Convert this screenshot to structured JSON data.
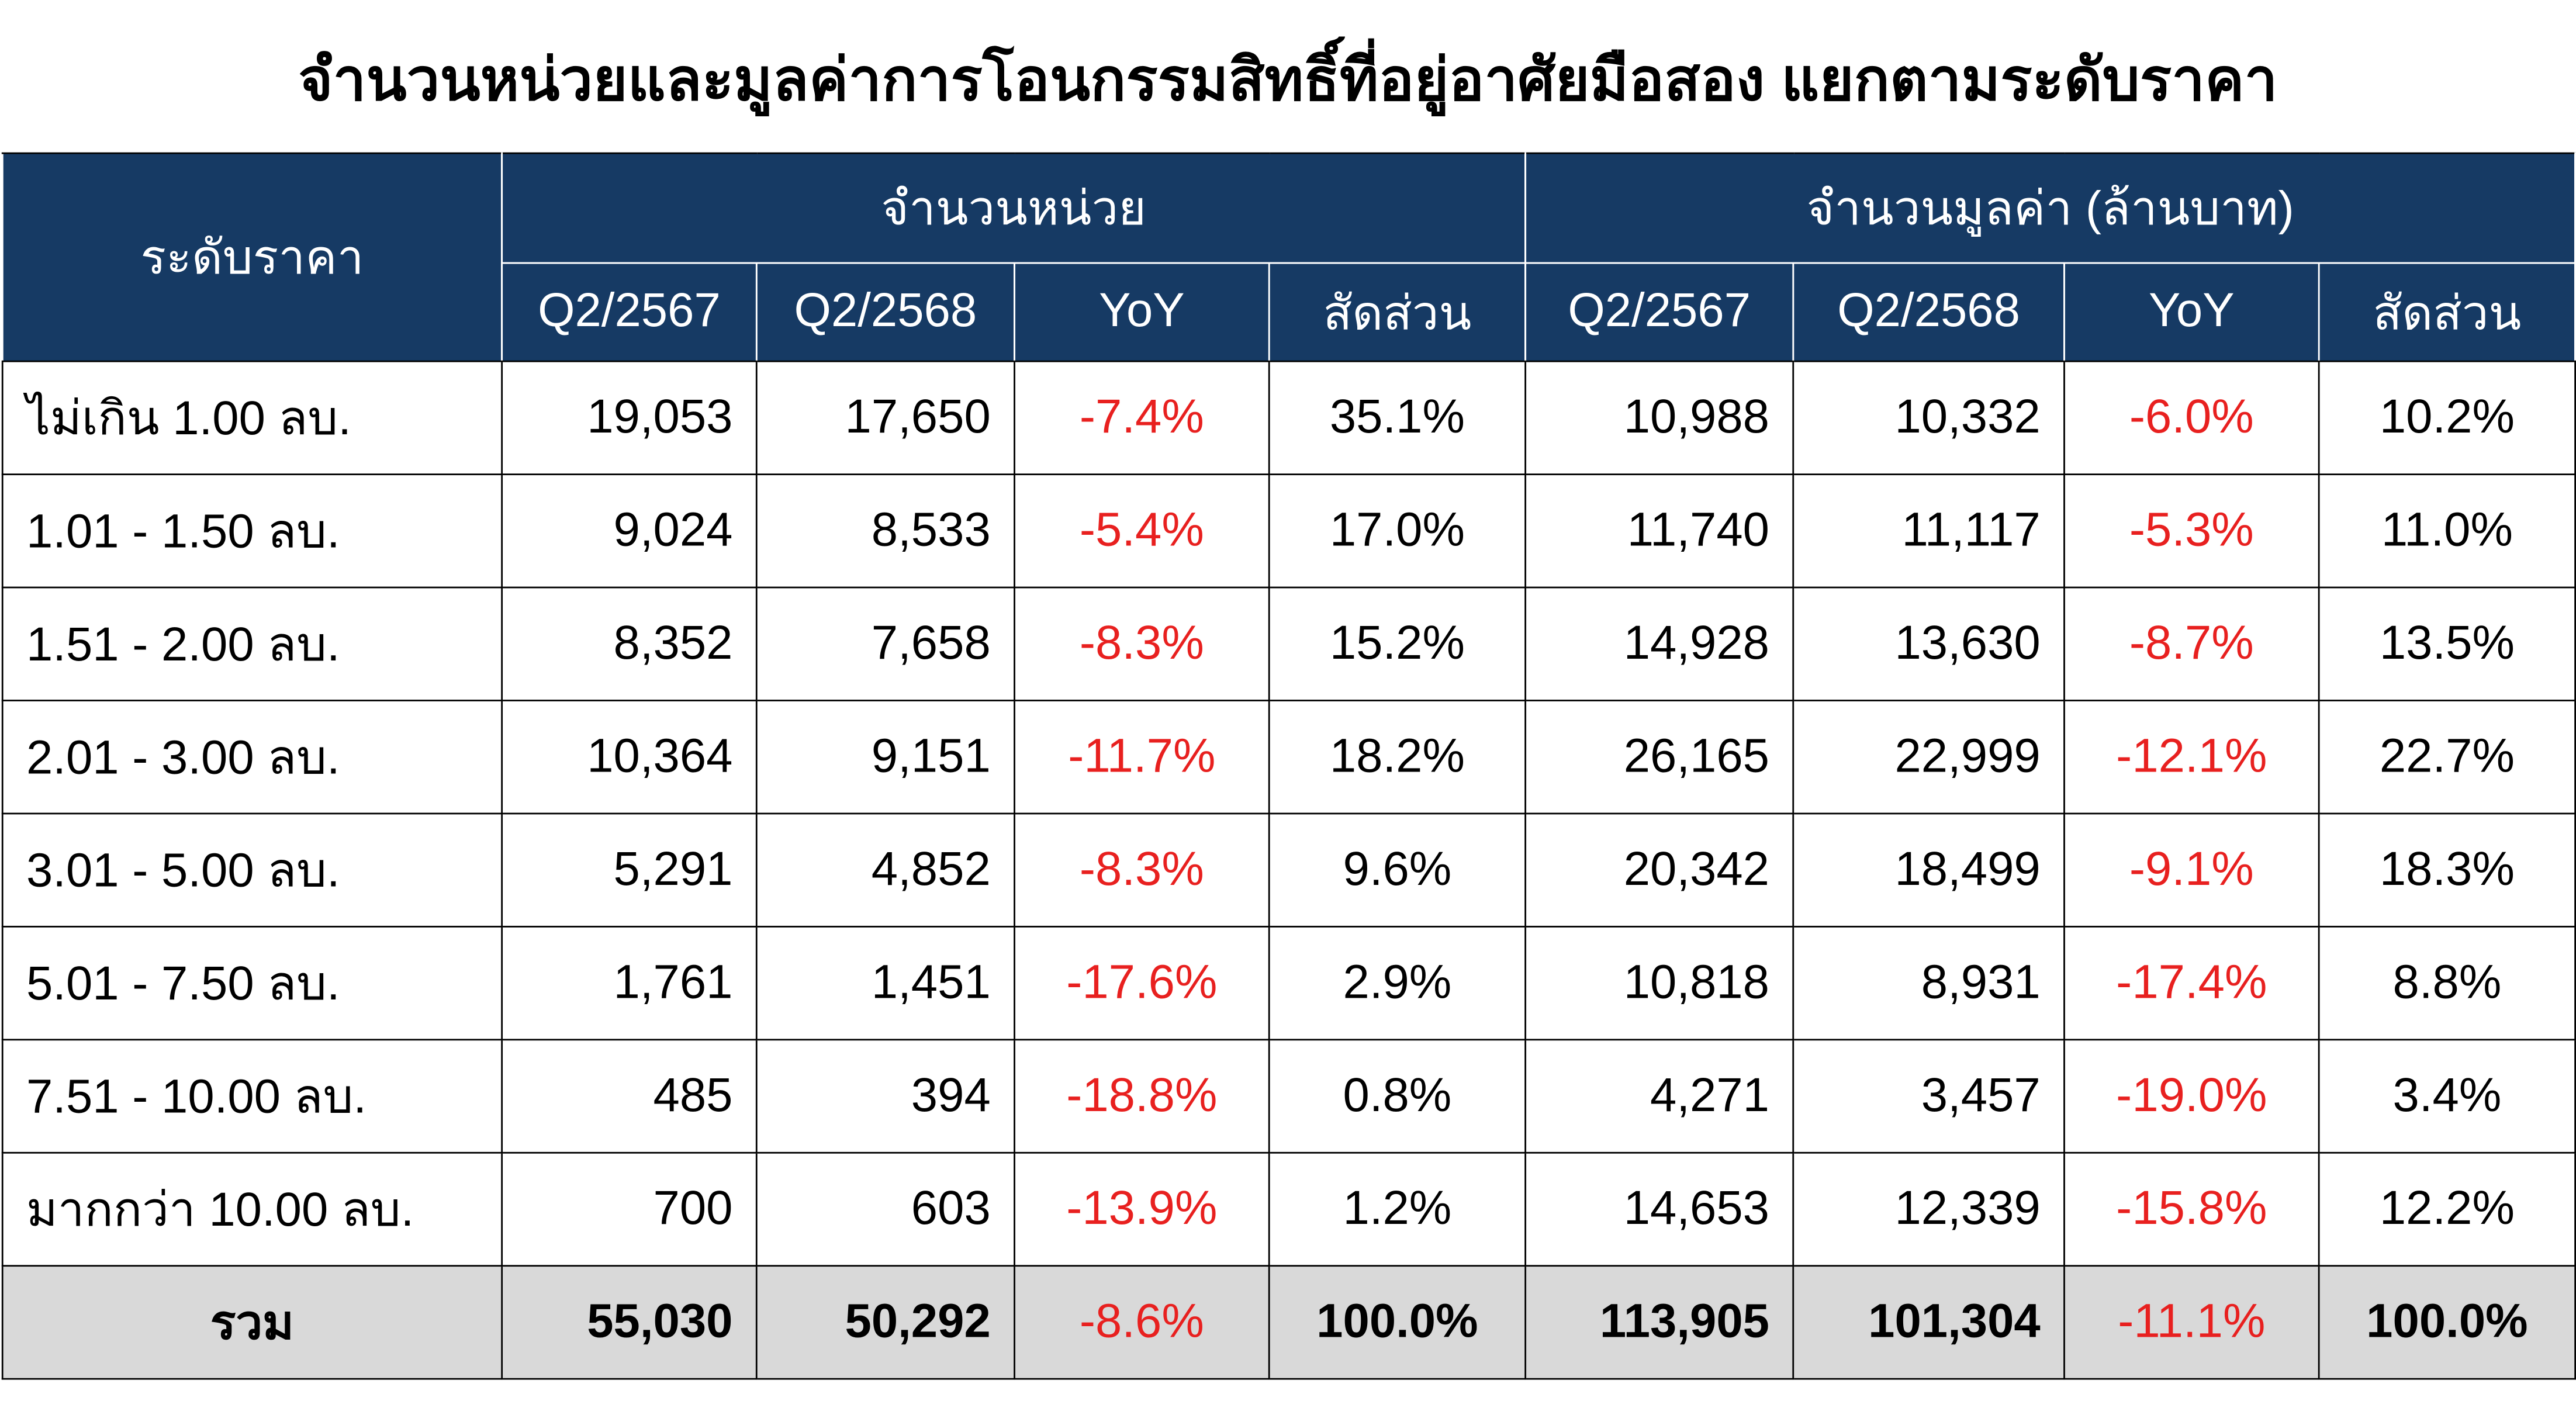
{
  "header": {
    "title": "จำนวนหน่วยและมูลค่าการโอนกรรมสิทธิ์ที่อยู่อาศัยมือสอง แยกตามระดับราคา"
  },
  "table": {
    "row_header": "ระดับราคา",
    "group_headers": [
      "จำนวนหน่วย",
      "จำนวนมูลค่า (ล้านบาท)"
    ],
    "subheaders": [
      "Q2/2567",
      "Q2/2568",
      "YoY",
      "สัดส่วน",
      "Q2/2567",
      "Q2/2568",
      "YoY",
      "สัดส่วน"
    ],
    "rows": [
      [
        "ไม่เกิน 1.00 ลบ.",
        "19,053",
        "17,650",
        "-7.4%",
        "35.1%",
        "10,988",
        "10,332",
        "-6.0%",
        "10.2%"
      ],
      [
        "1.01 - 1.50 ลบ.",
        "9,024",
        "8,533",
        "-5.4%",
        "17.0%",
        "11,740",
        "11,117",
        "-5.3%",
        "11.0%"
      ],
      [
        "1.51 - 2.00 ลบ.",
        "8,352",
        "7,658",
        "-8.3%",
        "15.2%",
        "14,928",
        "13,630",
        "-8.7%",
        "13.5%"
      ],
      [
        "2.01 - 3.00 ลบ.",
        "10,364",
        "9,151",
        "-11.7%",
        "18.2%",
        "26,165",
        "22,999",
        "-12.1%",
        "22.7%"
      ],
      [
        "3.01 - 5.00 ลบ.",
        "5,291",
        "4,852",
        "-8.3%",
        "9.6%",
        "20,342",
        "18,499",
        "-9.1%",
        "18.3%"
      ],
      [
        "5.01 - 7.50 ลบ.",
        "1,761",
        "1,451",
        "-17.6%",
        "2.9%",
        "10,818",
        "8,931",
        "-17.4%",
        "8.8%"
      ],
      [
        "7.51 - 10.00 ลบ.",
        "485",
        "394",
        "-18.8%",
        "0.8%",
        "4,271",
        "3,457",
        "-19.0%",
        "3.4%"
      ],
      [
        "มากกว่า 10.00 ลบ.",
        "700",
        "603",
        "-13.9%",
        "1.2%",
        "14,653",
        "12,339",
        "-15.8%",
        "12.2%"
      ]
    ],
    "total": [
      "รวม",
      "55,030",
      "50,292",
      "-8.6%",
      "100.0%",
      "113,905",
      "101,304",
      "-11.1%",
      "100.0%"
    ]
  }
}
